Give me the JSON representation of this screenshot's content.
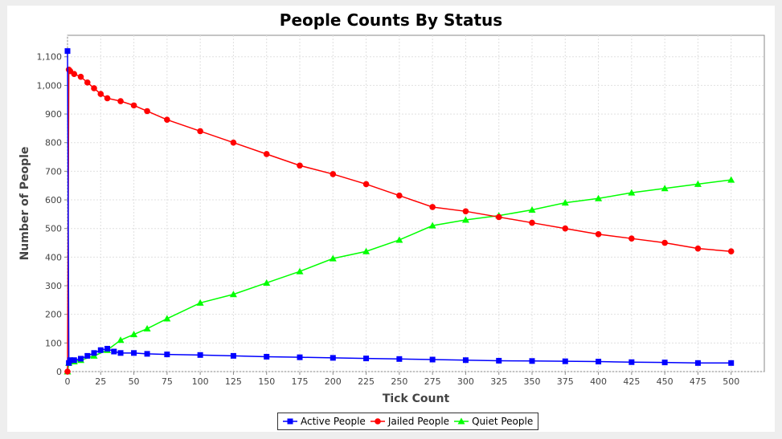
{
  "chart_data": {
    "type": "line",
    "title": "People Counts By Status",
    "xlabel": "Tick Count",
    "ylabel": "Number of People",
    "xlim": [
      0,
      525
    ],
    "ylim": [
      0,
      1175
    ],
    "xticks": [
      0,
      25,
      50,
      75,
      100,
      125,
      150,
      175,
      200,
      225,
      250,
      275,
      300,
      325,
      350,
      375,
      400,
      425,
      450,
      475,
      500
    ],
    "yticks": [
      0,
      100,
      200,
      300,
      400,
      500,
      600,
      700,
      800,
      900,
      1000,
      1100
    ],
    "ytick_labels": [
      "0",
      "100",
      "200",
      "300",
      "400",
      "500",
      "600",
      "700",
      "800",
      "900",
      "1,000",
      "1,100"
    ],
    "grid": true,
    "legend_position": "bottom",
    "series": [
      {
        "name": "Active People",
        "color": "#0000ff",
        "marker": "square",
        "x": [
          0,
          1,
          2,
          5,
          10,
          15,
          20,
          25,
          30,
          35,
          40,
          50,
          60,
          75,
          100,
          125,
          150,
          175,
          200,
          225,
          250,
          275,
          300,
          325,
          350,
          375,
          400,
          425,
          450,
          475,
          500
        ],
        "values": [
          1120,
          30,
          40,
          40,
          45,
          55,
          65,
          75,
          80,
          70,
          65,
          65,
          62,
          60,
          58,
          55,
          52,
          50,
          48,
          46,
          44,
          42,
          40,
          38,
          37,
          36,
          35,
          33,
          32,
          30,
          30
        ]
      },
      {
        "name": "Jailed People",
        "color": "#ff0000",
        "marker": "circle",
        "x": [
          0,
          1,
          2,
          5,
          10,
          15,
          20,
          25,
          30,
          40,
          50,
          60,
          75,
          100,
          125,
          150,
          175,
          200,
          225,
          250,
          275,
          300,
          325,
          350,
          375,
          400,
          425,
          450,
          475,
          500
        ],
        "values": [
          0,
          1055,
          1050,
          1040,
          1030,
          1010,
          990,
          970,
          955,
          945,
          930,
          910,
          880,
          840,
          800,
          760,
          720,
          690,
          655,
          615,
          575,
          560,
          540,
          520,
          500,
          480,
          465,
          450,
          430,
          420
        ]
      },
      {
        "name": "Quiet People",
        "color": "#00ff00",
        "marker": "triangle",
        "x": [
          0,
          1,
          5,
          10,
          20,
          30,
          40,
          50,
          60,
          75,
          100,
          125,
          150,
          175,
          200,
          225,
          250,
          275,
          300,
          325,
          350,
          375,
          400,
          425,
          450,
          475,
          500
        ],
        "values": [
          0,
          30,
          35,
          40,
          55,
          75,
          110,
          130,
          150,
          185,
          240,
          270,
          310,
          350,
          395,
          420,
          460,
          510,
          530,
          545,
          565,
          590,
          605,
          625,
          640,
          655,
          670
        ]
      }
    ]
  }
}
